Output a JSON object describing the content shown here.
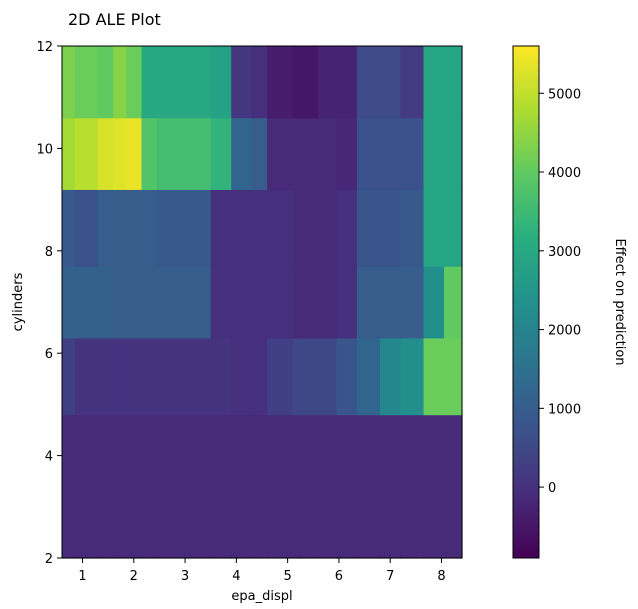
{
  "chart_data": {
    "type": "heatmap",
    "title": "2D ALE Plot",
    "xlabel": "epa_displ",
    "ylabel": "cylinders",
    "colorbar_label": "Effect on prediction",
    "colormap": "viridis",
    "xlim": [
      0.6,
      8.4
    ],
    "ylim": [
      2,
      12
    ],
    "x_ticks": [
      1,
      2,
      3,
      4,
      5,
      6,
      7,
      8
    ],
    "y_ticks": [
      2,
      4,
      6,
      8,
      10,
      12
    ],
    "colorbar_range": [
      -900,
      5600
    ],
    "colorbar_ticks": [
      0,
      1000,
      2000,
      3000,
      4000,
      5000
    ],
    "x_edges": [
      0.6,
      0.85,
      1.3,
      1.6,
      1.85,
      2.15,
      2.45,
      3.5,
      3.9,
      4.3,
      4.6,
      5.1,
      5.25,
      5.6,
      5.95,
      6.35,
      6.8,
      7.2,
      7.65,
      8.05,
      8.4
    ],
    "y_edges": [
      2,
      4.8,
      6.3,
      7.7,
      9.2,
      10.6,
      12
    ],
    "z": [
      [
        -150,
        -150,
        -150,
        -150,
        -150,
        -150,
        -150,
        -150,
        -150,
        -150,
        -150,
        -150,
        -150,
        -150,
        -150,
        -150,
        -150,
        -150,
        -150,
        -150
      ],
      [
        300,
        50,
        50,
        50,
        50,
        50,
        50,
        50,
        -50,
        -50,
        300,
        500,
        500,
        500,
        800,
        1200,
        2100,
        2300,
        4100,
        4100
      ],
      [
        1100,
        1100,
        1100,
        1000,
        1000,
        1000,
        1000,
        -50,
        -50,
        -50,
        -50,
        -150,
        -150,
        -150,
        -50,
        1000,
        1000,
        1000,
        2300,
        4000
      ],
      [
        900,
        700,
        1000,
        1000,
        1000,
        1000,
        900,
        -50,
        -50,
        -50,
        -50,
        -150,
        -150,
        -150,
        -50,
        800,
        800,
        900,
        2900,
        2900
      ],
      [
        4700,
        4900,
        5200,
        5300,
        5400,
        3800,
        3600,
        3300,
        1200,
        1000,
        -150,
        -150,
        -150,
        -150,
        -200,
        700,
        700,
        700,
        2900,
        2900
      ],
      [
        4300,
        4100,
        4000,
        4400,
        4100,
        3000,
        3000,
        2800,
        100,
        -50,
        -400,
        -500,
        -500,
        -250,
        -250,
        600,
        600,
        200,
        2900,
        2900
      ]
    ]
  }
}
